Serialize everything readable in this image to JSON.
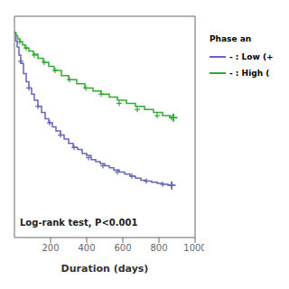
{
  "chart_data": {
    "type": "step",
    "xlabel": "Duration (days)",
    "xlim": [
      0,
      1000
    ],
    "ylim": [
      0.0,
      1.08
    ],
    "xticks": [
      200,
      400,
      600,
      800,
      1000
    ],
    "tick_labels": "x",
    "annotation": "Log-rank test, P<0.001",
    "legend_title": "Phase an",
    "legend": "right",
    "series": [
      {
        "name": "- : Low (+",
        "color": "#6666bb",
        "marker": "plus",
        "x": [
          0,
          8,
          15,
          25,
          35,
          50,
          65,
          80,
          95,
          110,
          130,
          150,
          170,
          190,
          210,
          230,
          255,
          275,
          300,
          325,
          350,
          375,
          400,
          425,
          450,
          475,
          500,
          525,
          550,
          580,
          610,
          640,
          670,
          700,
          730,
          760,
          790,
          820,
          850,
          870
        ],
        "values": [
          1.0,
          0.96,
          0.93,
          0.89,
          0.85,
          0.8,
          0.76,
          0.73,
          0.7,
          0.67,
          0.64,
          0.61,
          0.58,
          0.56,
          0.54,
          0.52,
          0.5,
          0.48,
          0.46,
          0.44,
          0.43,
          0.41,
          0.4,
          0.38,
          0.37,
          0.36,
          0.35,
          0.34,
          0.33,
          0.32,
          0.31,
          0.3,
          0.29,
          0.28,
          0.275,
          0.27,
          0.265,
          0.26,
          0.255,
          0.255
        ],
        "censor_x": [
          35,
          80,
          130,
          195,
          255,
          330,
          410,
          490,
          570,
          650,
          730,
          820,
          870
        ],
        "censor_y": [
          0.86,
          0.73,
          0.64,
          0.56,
          0.5,
          0.44,
          0.39,
          0.35,
          0.32,
          0.3,
          0.275,
          0.26,
          0.255
        ]
      },
      {
        "name": "- : High (",
        "color": "#33aa33",
        "marker": "plus",
        "x": [
          0,
          8,
          18,
          30,
          45,
          60,
          80,
          105,
          130,
          160,
          190,
          220,
          260,
          300,
          345,
          390,
          435,
          480,
          525,
          570,
          620,
          670,
          720,
          770,
          820,
          860,
          880
        ],
        "values": [
          1.0,
          0.985,
          0.97,
          0.955,
          0.94,
          0.925,
          0.91,
          0.895,
          0.875,
          0.855,
          0.835,
          0.815,
          0.79,
          0.77,
          0.75,
          0.73,
          0.715,
          0.7,
          0.685,
          0.67,
          0.655,
          0.64,
          0.625,
          0.61,
          0.595,
          0.585,
          0.585
        ],
        "censor_x": [
          30,
          65,
          110,
          165,
          225,
          305,
          395,
          480,
          580,
          680,
          790,
          870
        ],
        "censor_y": [
          0.955,
          0.925,
          0.89,
          0.855,
          0.815,
          0.77,
          0.73,
          0.7,
          0.655,
          0.625,
          0.595,
          0.585
        ]
      }
    ]
  }
}
